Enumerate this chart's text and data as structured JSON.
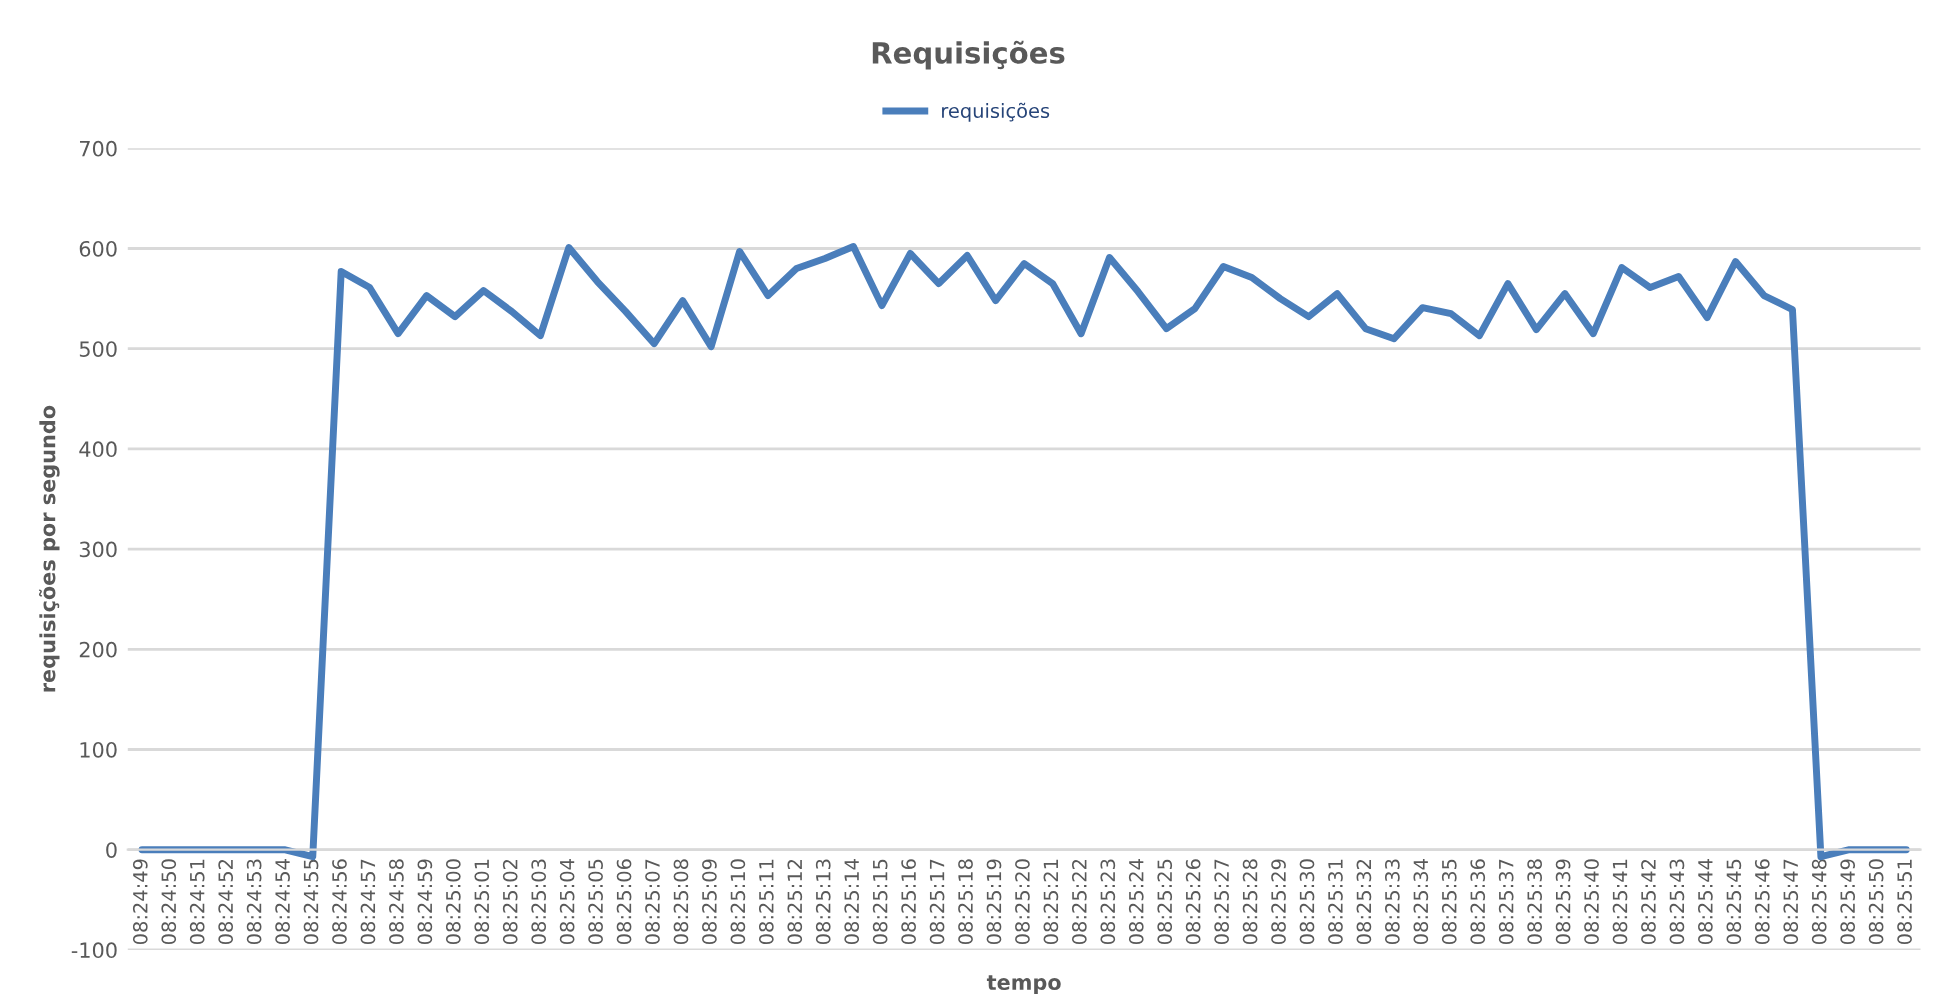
{
  "chart_data": {
    "type": "line",
    "title": "Requisições",
    "xlabel": "tempo",
    "ylabel": "requisições por segundo",
    "categories": [
      "08:24:49",
      "08:24:50",
      "08:24:51",
      "08:24:52",
      "08:24:53",
      "08:24:54",
      "08:24:55",
      "08:24:56",
      "08:24:57",
      "08:24:58",
      "08:24:59",
      "08:25:00",
      "08:25:01",
      "08:25:02",
      "08:25:03",
      "08:25:04",
      "08:25:05",
      "08:25:06",
      "08:25:07",
      "08:25:08",
      "08:25:09",
      "08:25:10",
      "08:25:11",
      "08:25:12",
      "08:25:13",
      "08:25:14",
      "08:25:15",
      "08:25:16",
      "08:25:17",
      "08:25:18",
      "08:25:19",
      "08:25:20",
      "08:25:21",
      "08:25:22",
      "08:25:23",
      "08:25:24",
      "08:25:25",
      "08:25:26",
      "08:25:27",
      "08:25:28",
      "08:25:29",
      "08:25:30",
      "08:25:31",
      "08:25:32",
      "08:25:33",
      "08:25:34",
      "08:25:35",
      "08:25:36",
      "08:25:37",
      "08:25:38",
      "08:25:39",
      "08:25:40",
      "08:25:41",
      "08:25:42",
      "08:25:43",
      "08:25:44",
      "08:25:45",
      "08:25:46",
      "08:25:47",
      "08:25:48",
      "08:25:49",
      "08:25:50",
      "08:25:51"
    ],
    "series": [
      {
        "name": "requisições",
        "color": "#4a7ebb",
        "values": [
          0,
          0,
          0,
          0,
          0,
          0,
          -7,
          577,
          561,
          515,
          553,
          532,
          558,
          537,
          513,
          601,
          567,
          537,
          505,
          548,
          502,
          597,
          553,
          580,
          590,
          602,
          543,
          595,
          565,
          593,
          548,
          585,
          565,
          515,
          591,
          557,
          520,
          540,
          582,
          571,
          550,
          532,
          555,
          520,
          510,
          541,
          535,
          513,
          565,
          519,
          555,
          515,
          581,
          561,
          572,
          531,
          587,
          553,
          539,
          -7,
          0,
          0,
          0
        ]
      }
    ],
    "ylim": [
      -100,
      700
    ],
    "yticks": [
      -100,
      0,
      100,
      200,
      300,
      400,
      500,
      600,
      700
    ],
    "grid": "y",
    "legend": "top",
    "line_style": "solid",
    "marker": "none"
  }
}
